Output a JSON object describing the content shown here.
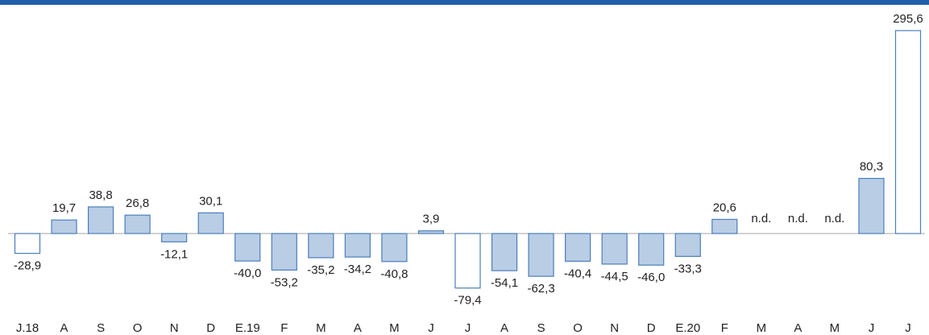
{
  "chart_data": {
    "type": "bar",
    "categories": [
      "J.18",
      "A",
      "S",
      "O",
      "N",
      "D",
      "E.19",
      "F",
      "M",
      "A",
      "M",
      "J",
      "J",
      "A",
      "S",
      "O",
      "N",
      "D",
      "E.20",
      "F",
      "M",
      "A",
      "M",
      "J",
      "J"
    ],
    "values": [
      -28.9,
      19.7,
      38.8,
      26.8,
      -12.1,
      30.1,
      -40.0,
      -53.2,
      -35.2,
      -34.2,
      -40.8,
      3.9,
      -79.4,
      -54.1,
      -62.3,
      -40.4,
      -44.5,
      -46.0,
      -33.3,
      20.6,
      null,
      null,
      null,
      80.3,
      295.6
    ],
    "value_labels": [
      "-28,9",
      "19,7",
      "38,8",
      "26,8",
      "-12,1",
      "30,1",
      "-40,0",
      "-53,2",
      "-35,2",
      "-34,2",
      "-40,8",
      "3,9",
      "-79,4",
      "-54,1",
      "-62,3",
      "-40,4",
      "-44,5",
      "-46,0",
      "-33,3",
      "20,6",
      "n.d.",
      "n.d.",
      "n.d.",
      "80,3",
      "295,6"
    ],
    "colors": [
      "#ffffff",
      "#b9cde5",
      "#b9cde5",
      "#b9cde5",
      "#b9cde5",
      "#b9cde5",
      "#b9cde5",
      "#b9cde5",
      "#b9cde5",
      "#b9cde5",
      "#b9cde5",
      "#b9cde5",
      "#ffffff",
      "#b9cde5",
      "#b9cde5",
      "#b9cde5",
      "#b9cde5",
      "#b9cde5",
      "#b9cde5",
      "#b9cde5",
      "#b9cde5",
      "#b9cde5",
      "#b9cde5",
      "#b9cde5",
      "#ffffff"
    ],
    "edge_color": "#4a7ebb"
  }
}
